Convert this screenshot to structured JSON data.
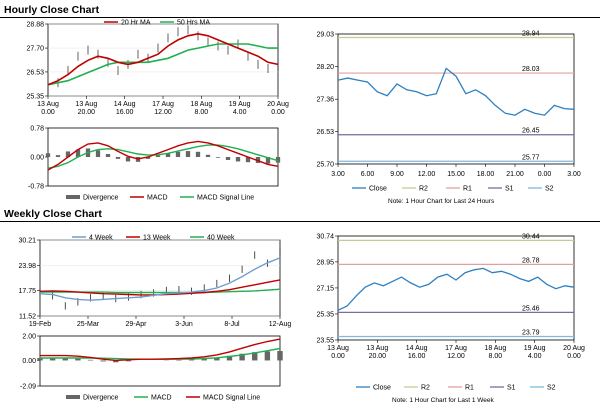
{
  "sections": {
    "hourly_title": "Hourly Close Chart",
    "weekly_title": "Weekly Close Chart"
  },
  "colors": {
    "price": "#222222",
    "ma_short": "#c00000",
    "ma_long": "#20b050",
    "close": "#2e7fc0",
    "r2": "#c8c890",
    "r1": "#e0a0a0",
    "s1": "#7b6aa3",
    "s2": "#7fb8e0",
    "divergence": "#666666",
    "wk4": "#6f9fd0"
  },
  "chart_data": [
    {
      "id": "hourly_price",
      "type": "line",
      "legend": [
        "20 Hr MA",
        "50 Hrs MA"
      ],
      "x_ticks": [
        [
          "13 Aug",
          "0.00"
        ],
        [
          "13 Aug",
          "20.00"
        ],
        [
          "14 Aug",
          "16.00"
        ],
        [
          "17 Aug",
          "12.00"
        ],
        [
          "18 Aug",
          "8.00"
        ],
        [
          "19 Aug",
          "4.00"
        ],
        [
          "20 Aug",
          "0.00"
        ]
      ],
      "y_ticks": [
        "28.88",
        "27.70",
        "26.53",
        "25.35"
      ],
      "ylim": [
        25.35,
        28.88
      ],
      "series": [
        {
          "name": "20 Hr MA",
          "values": [
            25.9,
            26.1,
            26.4,
            26.8,
            27.1,
            27.3,
            27.2,
            27.0,
            26.9,
            27.0,
            27.2,
            27.4,
            27.8,
            28.1,
            28.3,
            28.4,
            28.3,
            28.1,
            27.9,
            27.7,
            27.5,
            27.3,
            27.0,
            26.9
          ]
        },
        {
          "name": "50 Hrs MA",
          "values": [
            25.9,
            26.0,
            26.1,
            26.3,
            26.5,
            26.7,
            26.9,
            27.0,
            27.0,
            27.0,
            27.0,
            27.1,
            27.2,
            27.4,
            27.6,
            27.7,
            27.8,
            27.9,
            27.9,
            27.9,
            27.9,
            27.8,
            27.7,
            27.7
          ]
        },
        {
          "name": "price",
          "values": [
            25.6,
            26.0,
            26.6,
            27.3,
            27.6,
            27.4,
            27.0,
            26.6,
            26.9,
            27.4,
            27.2,
            27.7,
            28.2,
            28.5,
            28.6,
            28.3,
            28.0,
            27.8,
            27.6,
            27.9,
            27.3,
            26.9,
            26.7,
            26.8
          ]
        }
      ]
    },
    {
      "id": "hourly_macd",
      "type": "line",
      "legend": [
        "Divergence",
        "MACD",
        "MACD Signal Line"
      ],
      "y_ticks": [
        "0.78",
        "0.00",
        "-0.78"
      ],
      "ylim": [
        -0.78,
        0.78
      ],
      "series": [
        {
          "name": "MACD",
          "values": [
            -0.35,
            -0.2,
            0.0,
            0.2,
            0.35,
            0.38,
            0.3,
            0.15,
            0.02,
            -0.05,
            0.0,
            0.1,
            0.2,
            0.3,
            0.38,
            0.42,
            0.38,
            0.3,
            0.2,
            0.1,
            0.0,
            -0.1,
            -0.2,
            -0.25
          ]
        },
        {
          "name": "MACD Signal Line",
          "values": [
            -0.3,
            -0.25,
            -0.15,
            0.0,
            0.12,
            0.2,
            0.22,
            0.2,
            0.14,
            0.08,
            0.05,
            0.06,
            0.1,
            0.16,
            0.22,
            0.28,
            0.32,
            0.32,
            0.28,
            0.22,
            0.14,
            0.06,
            -0.02,
            -0.1
          ]
        },
        {
          "name": "Divergence",
          "values": [
            0.1,
            0.05,
            0.15,
            0.2,
            0.23,
            0.18,
            0.08,
            -0.05,
            -0.12,
            -0.13,
            -0.05,
            0.04,
            0.1,
            0.14,
            0.16,
            0.14,
            0.06,
            -0.02,
            -0.08,
            -0.12,
            -0.14,
            -0.16,
            -0.18,
            -0.15
          ]
        }
      ]
    },
    {
      "id": "hourly_close",
      "type": "line",
      "x_ticks": [
        "3.00",
        "6.00",
        "9.00",
        "12.00",
        "15.00",
        "18.00",
        "21.00",
        "0.00",
        "3.00"
      ],
      "y_ticks": [
        "29.03",
        "28.20",
        "27.36",
        "26.53",
        "25.70"
      ],
      "ylim": [
        25.7,
        29.03
      ],
      "levels": [
        {
          "name": "R2",
          "value": 28.94,
          "label": "28.94"
        },
        {
          "name": "R1",
          "value": 28.03,
          "label": "28.03"
        },
        {
          "name": "S1",
          "value": 26.45,
          "label": "26.45"
        },
        {
          "name": "S2",
          "value": 25.77,
          "label": "25.77"
        }
      ],
      "series": [
        {
          "name": "Close",
          "values": [
            27.85,
            27.9,
            27.85,
            27.8,
            27.55,
            27.45,
            27.75,
            27.6,
            27.55,
            27.45,
            27.5,
            28.15,
            27.95,
            27.5,
            27.6,
            27.45,
            27.2,
            27.0,
            26.95,
            27.1,
            27.0,
            26.95,
            27.2,
            27.12,
            27.1
          ]
        }
      ],
      "legend": [
        "Close",
        "R2",
        "R1",
        "S1",
        "S2"
      ],
      "note": "Note: 1 Hour Chart for Last 24 Hours"
    },
    {
      "id": "weekly_price",
      "type": "line",
      "legend": [
        "4 Week",
        "13 Week",
        "40 Week"
      ],
      "x_ticks": [
        "19-Feb",
        "25-Mar",
        "29-Apr",
        "3-Jun",
        "8-Jul",
        "12-Aug"
      ],
      "y_ticks": [
        "30.21",
        "23.98",
        "17.75",
        "11.52"
      ],
      "ylim": [
        11.52,
        30.21
      ],
      "series": [
        {
          "name": "4 Week",
          "values": [
            17.0,
            16.8,
            16.0,
            15.6,
            15.4,
            15.6,
            15.8,
            16.0,
            16.2,
            16.6,
            17.0,
            17.2,
            17.4,
            17.8,
            18.4,
            19.6,
            21.2,
            23.0,
            24.6,
            25.8
          ]
        },
        {
          "name": "13 Week",
          "values": [
            17.6,
            17.7,
            17.6,
            17.4,
            17.2,
            17.0,
            16.9,
            16.8,
            16.7,
            16.7,
            16.8,
            16.9,
            17.1,
            17.3,
            17.6,
            18.0,
            18.6,
            19.2,
            19.8,
            20.4
          ]
        },
        {
          "name": "40 Week",
          "values": [
            17.4,
            17.4,
            17.4,
            17.4,
            17.4,
            17.4,
            17.3,
            17.3,
            17.3,
            17.3,
            17.3,
            17.3,
            17.3,
            17.3,
            17.4,
            17.5,
            17.6,
            17.7,
            17.9,
            18.1
          ]
        },
        {
          "name": "price",
          "values": [
            17.5,
            16.5,
            14.0,
            15.0,
            16.0,
            16.4,
            15.8,
            16.2,
            16.8,
            17.2,
            17.8,
            18.0,
            17.6,
            18.4,
            19.5,
            20.8,
            23.0,
            26.5,
            24.5,
            27.2
          ]
        }
      ]
    },
    {
      "id": "weekly_macd",
      "type": "line",
      "legend": [
        "Divergence",
        "MACD",
        "MACD Signal Line"
      ],
      "y_ticks": [
        "2.00",
        "0.00",
        "-2.09"
      ],
      "ylim": [
        -2.09,
        2.0
      ],
      "series": [
        {
          "name": "MACD",
          "values": [
            0.4,
            0.4,
            0.4,
            0.35,
            0.25,
            0.1,
            0.0,
            0.05,
            0.1,
            0.1,
            0.12,
            0.15,
            0.2,
            0.3,
            0.45,
            0.7,
            1.0,
            1.3,
            1.55,
            1.75
          ]
        },
        {
          "name": "MACD Signal Line",
          "values": [
            0.2,
            0.2,
            0.2,
            0.2,
            0.2,
            0.18,
            0.15,
            0.12,
            0.1,
            0.1,
            0.1,
            0.1,
            0.12,
            0.16,
            0.22,
            0.32,
            0.45,
            0.62,
            0.8,
            0.98
          ]
        },
        {
          "name": "Divergence",
          "values": [
            0.2,
            0.2,
            0.2,
            0.15,
            0.05,
            -0.08,
            -0.15,
            -0.07,
            0.0,
            0.0,
            0.02,
            0.05,
            0.08,
            0.14,
            0.23,
            0.38,
            0.55,
            0.68,
            0.75,
            0.77
          ]
        }
      ]
    },
    {
      "id": "weekly_close",
      "type": "line",
      "x_ticks": [
        [
          "13 Aug",
          "0.00"
        ],
        [
          "13 Aug",
          "20.00"
        ],
        [
          "14 Aug",
          "16.00"
        ],
        [
          "17 Aug",
          "12.00"
        ],
        [
          "18 Aug",
          "8.00"
        ],
        [
          "19 Aug",
          "4.00"
        ],
        [
          "20 Aug",
          "0.00"
        ]
      ],
      "y_ticks": [
        "30.74",
        "28.95",
        "27.15",
        "25.35",
        "23.55"
      ],
      "ylim": [
        23.55,
        30.74
      ],
      "levels": [
        {
          "name": "R2",
          "value": 30.44,
          "label": "30.44"
        },
        {
          "name": "R1",
          "value": 28.78,
          "label": "28.78"
        },
        {
          "name": "S1",
          "value": 25.46,
          "label": "25.46"
        },
        {
          "name": "S2",
          "value": 23.79,
          "label": "23.79"
        }
      ],
      "series": [
        {
          "name": "Close",
          "values": [
            25.6,
            25.9,
            26.6,
            27.2,
            27.5,
            27.3,
            27.6,
            27.9,
            27.5,
            27.2,
            27.4,
            27.9,
            28.1,
            27.7,
            28.2,
            28.4,
            28.5,
            28.2,
            28.3,
            28.1,
            27.8,
            27.6,
            27.9,
            27.4,
            27.1,
            27.3,
            27.2
          ]
        }
      ],
      "legend": [
        "Close",
        "R2",
        "R1",
        "S1",
        "S2"
      ],
      "note": "Note: 1 Hour Chart for Last 1 Week"
    }
  ]
}
